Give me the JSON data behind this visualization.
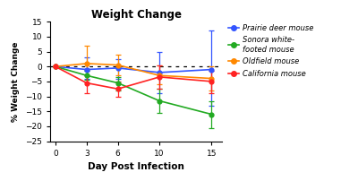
{
  "title": "Weight Change",
  "xlabel": "Day Post Infection",
  "ylabel": "% Weight Change",
  "days": [
    0,
    3,
    6,
    10,
    15
  ],
  "series": {
    "Prairie deer mouse": {
      "color": "#3355ff",
      "y": [
        0,
        -1,
        -0.5,
        -2,
        -1
      ],
      "yerr_low": [
        0,
        3,
        3.5,
        7,
        12
      ],
      "yerr_high": [
        0,
        4,
        3,
        7,
        13
      ]
    },
    "Sonora white-\nfooted mouse": {
      "color": "#22aa22",
      "y": [
        0,
        -3,
        -5.5,
        -11.5,
        -16
      ],
      "yerr_low": [
        0,
        1.5,
        2.5,
        4,
        4.5
      ],
      "yerr_high": [
        0,
        1.5,
        2,
        4,
        4.5
      ]
    },
    "Oldfield mouse": {
      "color": "#ff8800",
      "y": [
        0,
        1,
        0.5,
        -3,
        -4
      ],
      "yerr_low": [
        0,
        2,
        3.5,
        3,
        4
      ],
      "yerr_high": [
        0,
        6,
        3.5,
        3.5,
        4
      ]
    },
    "California mouse": {
      "color": "#ff2222",
      "y": [
        0,
        -5.5,
        -7.5,
        -3.5,
        -5
      ],
      "yerr_low": [
        0,
        3.5,
        2.5,
        4,
        4
      ],
      "yerr_high": [
        0,
        2.5,
        2.5,
        4,
        3.5
      ]
    }
  },
  "ylim": [
    -25,
    15
  ],
  "yticks": [
    -25,
    -20,
    -15,
    -10,
    -5,
    0,
    5,
    10,
    15
  ],
  "xlim": [
    -0.5,
    16
  ],
  "xticks": [
    0,
    3,
    6,
    10,
    15
  ],
  "legend_labels": [
    "Prairie deer mouse",
    "Sonora white-\nfooted mouse",
    "Oldfield mouse",
    "California mouse"
  ],
  "legend_colors": [
    "#3355ff",
    "#22aa22",
    "#ff8800",
    "#ff2222"
  ],
  "background_color": "#ffffff",
  "figsize": [
    4.0,
    2.02
  ],
  "dpi": 100
}
